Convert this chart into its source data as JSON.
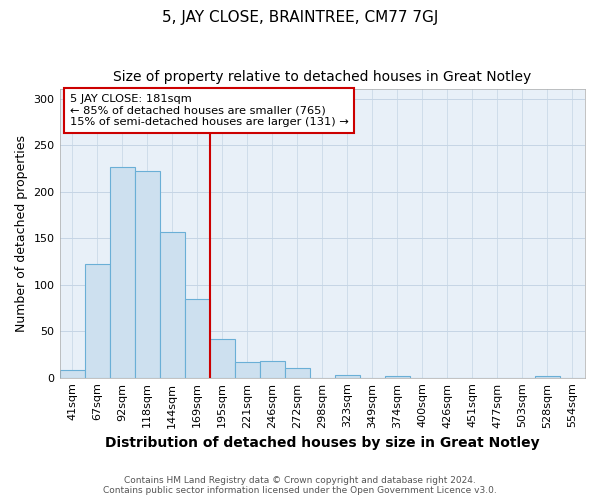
{
  "title": "5, JAY CLOSE, BRAINTREE, CM77 7GJ",
  "subtitle": "Size of property relative to detached houses in Great Notley",
  "xlabel": "Distribution of detached houses by size in Great Notley",
  "ylabel": "Number of detached properties",
  "footer1": "Contains HM Land Registry data © Crown copyright and database right 2024.",
  "footer2": "Contains public sector information licensed under the Open Government Licence v3.0.",
  "bins": [
    "41sqm",
    "67sqm",
    "92sqm",
    "118sqm",
    "144sqm",
    "169sqm",
    "195sqm",
    "221sqm",
    "246sqm",
    "272sqm",
    "298sqm",
    "323sqm",
    "349sqm",
    "374sqm",
    "400sqm",
    "426sqm",
    "451sqm",
    "477sqm",
    "503sqm",
    "528sqm",
    "554sqm"
  ],
  "values": [
    8,
    122,
    226,
    222,
    157,
    85,
    42,
    17,
    18,
    10,
    0,
    3,
    0,
    2,
    0,
    0,
    0,
    0,
    0,
    2,
    0
  ],
  "bar_color": "#cde0ef",
  "bar_edge_color": "#6aafd6",
  "vline_color": "#cc0000",
  "annotation_text": "5 JAY CLOSE: 181sqm\n← 85% of detached houses are smaller (765)\n15% of semi-detached houses are larger (131) →",
  "annotation_box_color": "#ffffff",
  "annotation_box_edge": "#cc0000",
  "ylim": [
    0,
    310
  ],
  "yticks": [
    0,
    50,
    100,
    150,
    200,
    250,
    300
  ],
  "background_color": "#ffffff",
  "plot_bg_color": "#e8f0f8",
  "grid_color": "#c5d5e5",
  "title_fontsize": 11,
  "subtitle_fontsize": 10,
  "xlabel_fontsize": 10,
  "ylabel_fontsize": 9,
  "tick_fontsize": 8
}
